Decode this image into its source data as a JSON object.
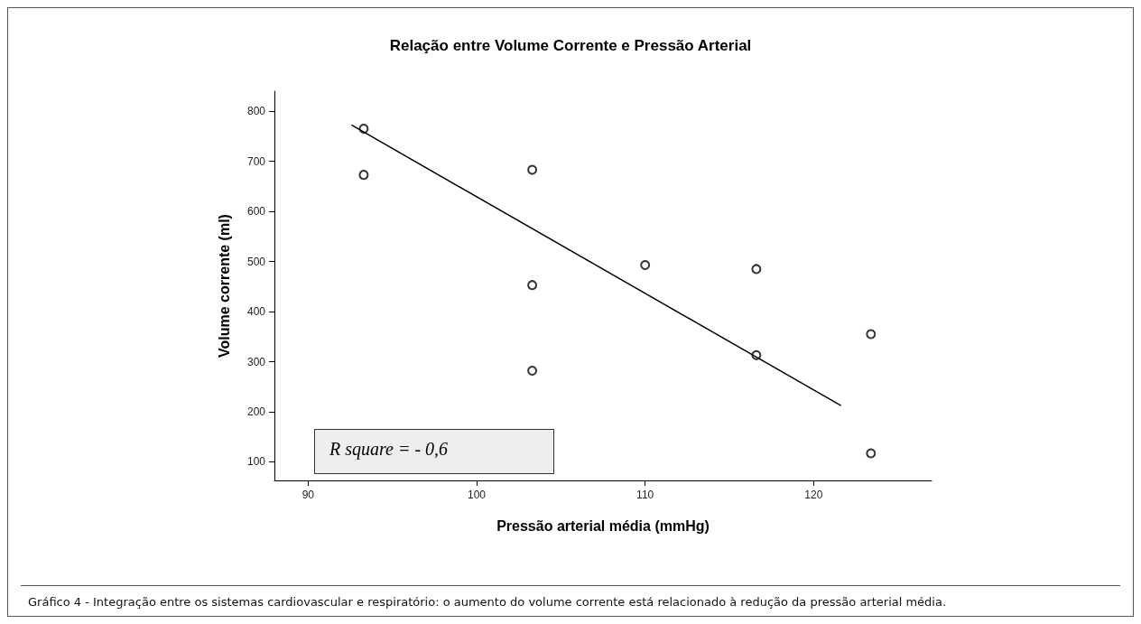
{
  "chart_data": {
    "type": "scatter",
    "title": "Relação entre Volume Corrente e Pressão Arterial",
    "xlabel": "Pressão arterial média (mmHg)",
    "ylabel": "Volume corrente (ml)",
    "x": [
      93.3,
      93.3,
      103.3,
      103.3,
      103.3,
      110,
      116.6,
      116.6,
      123.4,
      123.4
    ],
    "series": [
      {
        "color": "#000000",
        "values": [
          765,
          673,
          683,
          453,
          282,
          493,
          485,
          313,
          355,
          117
        ]
      },
      {
        "type": "line",
        "color": "#000000",
        "x": [
          92.6,
          121.6
        ],
        "values": [
          772,
          213
        ],
        "marker": "none"
      }
    ],
    "xlim": [
      88,
      127
    ],
    "xticks": [
      90,
      100,
      110,
      120
    ],
    "ylim": [
      63,
      840
    ],
    "yticks": [
      100,
      200,
      300,
      400,
      500,
      600,
      700,
      800
    ],
    "marker": "circle",
    "annotations": [
      "R square = - 0,6",
      "Gráfico 4 - Integração entre os sistemas cardiovascular e respiratório: o aumento do volume corrente está relacionado à redução da pressão arterial média."
    ]
  }
}
